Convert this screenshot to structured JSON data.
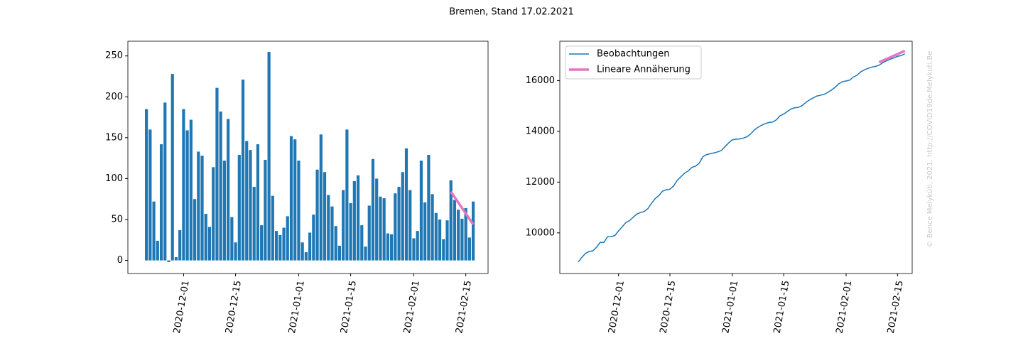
{
  "title": "Bremen, Stand 17.02.2021",
  "watermark": "© Bence Melykúti, 2021. http://COVID19de.Melykuti.Be",
  "chart_data": [
    {
      "type": "bar",
      "x": [
        "2020-11-21",
        "2020-11-22",
        "2020-11-23",
        "2020-11-24",
        "2020-11-25",
        "2020-11-26",
        "2020-11-27",
        "2020-11-28",
        "2020-11-29",
        "2020-11-30",
        "2020-12-01",
        "2020-12-02",
        "2020-12-03",
        "2020-12-04",
        "2020-12-05",
        "2020-12-06",
        "2020-12-07",
        "2020-12-08",
        "2020-12-09",
        "2020-12-10",
        "2020-12-11",
        "2020-12-12",
        "2020-12-13",
        "2020-12-14",
        "2020-12-15",
        "2020-12-16",
        "2020-12-17",
        "2020-12-18",
        "2020-12-19",
        "2020-12-20",
        "2020-12-21",
        "2020-12-22",
        "2020-12-23",
        "2020-12-24",
        "2020-12-25",
        "2020-12-26",
        "2020-12-27",
        "2020-12-28",
        "2020-12-29",
        "2020-12-30",
        "2020-12-31",
        "2021-01-01",
        "2021-01-02",
        "2021-01-03",
        "2021-01-04",
        "2021-01-05",
        "2021-01-06",
        "2021-01-07",
        "2021-01-08",
        "2021-01-09",
        "2021-01-10",
        "2021-01-11",
        "2021-01-12",
        "2021-01-13",
        "2021-01-14",
        "2021-01-15",
        "2021-01-16",
        "2021-01-17",
        "2021-01-18",
        "2021-01-19",
        "2021-01-20",
        "2021-01-21",
        "2021-01-22",
        "2021-01-23",
        "2021-01-24",
        "2021-01-25",
        "2021-01-26",
        "2021-01-27",
        "2021-01-28",
        "2021-01-29",
        "2021-01-30",
        "2021-01-31",
        "2021-02-01",
        "2021-02-02",
        "2021-02-03",
        "2021-02-04",
        "2021-02-05",
        "2021-02-06",
        "2021-02-07",
        "2021-02-08",
        "2021-02-09",
        "2021-02-10",
        "2021-02-11",
        "2021-02-12",
        "2021-02-13",
        "2021-02-14",
        "2021-02-15",
        "2021-02-16",
        "2021-02-17"
      ],
      "values": [
        185,
        160,
        72,
        24,
        142,
        193,
        -2,
        228,
        4,
        37,
        185,
        159,
        172,
        75,
        133,
        128,
        57,
        41,
        114,
        211,
        182,
        122,
        173,
        53,
        22,
        129,
        221,
        146,
        135,
        90,
        142,
        43,
        123,
        255,
        79,
        36,
        31,
        40,
        54,
        152,
        148,
        122,
        22,
        10,
        34,
        56,
        111,
        154,
        108,
        80,
        66,
        42,
        18,
        86,
        160,
        70,
        97,
        104,
        43,
        17,
        67,
        124,
        100,
        78,
        76,
        33,
        32,
        82,
        90,
        108,
        137,
        86,
        27,
        36,
        122,
        71,
        129,
        81,
        58,
        50,
        26,
        49,
        98,
        74,
        62,
        51,
        64,
        28,
        72
      ],
      "color": "#1f77b4",
      "fit": {
        "x": [
          "2021-02-11",
          "2021-02-17"
        ],
        "values": [
          84,
          44
        ],
        "color": "#e377c2"
      },
      "xlim": [
        "2020-11-16",
        "2021-02-21"
      ],
      "xticks": [
        "2020-12-01",
        "2020-12-15",
        "2021-01-01",
        "2021-01-15",
        "2021-02-01",
        "2021-02-15"
      ],
      "ylim": [
        -16,
        268
      ],
      "yticks": [
        0,
        50,
        100,
        150,
        200,
        250
      ]
    },
    {
      "type": "line",
      "x": [
        "2020-11-20",
        "2020-11-21",
        "2020-11-22",
        "2020-11-23",
        "2020-11-24",
        "2020-11-25",
        "2020-11-26",
        "2020-11-27",
        "2020-11-28",
        "2020-11-29",
        "2020-11-30",
        "2020-12-01",
        "2020-12-02",
        "2020-12-03",
        "2020-12-04",
        "2020-12-05",
        "2020-12-06",
        "2020-12-07",
        "2020-12-08",
        "2020-12-09",
        "2020-12-10",
        "2020-12-11",
        "2020-12-12",
        "2020-12-13",
        "2020-12-14",
        "2020-12-15",
        "2020-12-16",
        "2020-12-17",
        "2020-12-18",
        "2020-12-19",
        "2020-12-20",
        "2020-12-21",
        "2020-12-22",
        "2020-12-23",
        "2020-12-24",
        "2020-12-25",
        "2020-12-26",
        "2020-12-27",
        "2020-12-28",
        "2020-12-29",
        "2020-12-30",
        "2020-12-31",
        "2021-01-01",
        "2021-01-02",
        "2021-01-03",
        "2021-01-04",
        "2021-01-05",
        "2021-01-06",
        "2021-01-07",
        "2021-01-08",
        "2021-01-09",
        "2021-01-10",
        "2021-01-11",
        "2021-01-12",
        "2021-01-13",
        "2021-01-14",
        "2021-01-15",
        "2021-01-16",
        "2021-01-17",
        "2021-01-18",
        "2021-01-19",
        "2021-01-20",
        "2021-01-21",
        "2021-01-22",
        "2021-01-23",
        "2021-01-24",
        "2021-01-25",
        "2021-01-26",
        "2021-01-27",
        "2021-01-28",
        "2021-01-29",
        "2021-01-30",
        "2021-01-31",
        "2021-02-01",
        "2021-02-02",
        "2021-02-03",
        "2021-02-04",
        "2021-02-05",
        "2021-02-06",
        "2021-02-07",
        "2021-02-08",
        "2021-02-09",
        "2021-02-10",
        "2021-02-11",
        "2021-02-12",
        "2021-02-13",
        "2021-02-14",
        "2021-02-15",
        "2021-02-16",
        "2021-02-17"
      ],
      "series": [
        {
          "name": "Beobachtungen",
          "color": "#1f77b4",
          "values": [
            8850,
            9035,
            9195,
            9267,
            9291,
            9433,
            9626,
            9624,
            9852,
            9856,
            9893,
            10078,
            10237,
            10409,
            10484,
            10617,
            10745,
            10802,
            10843,
            10957,
            11168,
            11350,
            11472,
            11645,
            11698,
            11720,
            11849,
            12070,
            12216,
            12351,
            12441,
            12583,
            12626,
            12749,
            13004,
            13083,
            13119,
            13150,
            13190,
            13244,
            13396,
            13544,
            13666,
            13688,
            13698,
            13732,
            13788,
            13899,
            14053,
            14161,
            14241,
            14307,
            14349,
            14367,
            14453,
            14613,
            14683,
            14780,
            14884,
            14927,
            14944,
            15011,
            15135,
            15235,
            15313,
            15389,
            15422,
            15454,
            15536,
            15626,
            15734,
            15871,
            15957,
            15984,
            16020,
            16142,
            16213,
            16342,
            16423,
            16481,
            16531,
            16557,
            16606,
            16704,
            16778,
            16840,
            16891,
            16955,
            16983,
            17055
          ]
        },
        {
          "name": "Lineare Annäherung",
          "color": "#e377c2",
          "x": [
            "2021-02-10",
            "2021-02-17"
          ],
          "values": [
            16720,
            17170
          ]
        }
      ],
      "legend": "upper left",
      "xlim": [
        "2020-11-15",
        "2021-02-19"
      ],
      "xticks": [
        "2020-12-01",
        "2020-12-15",
        "2021-01-01",
        "2021-01-15",
        "2021-02-01",
        "2021-02-15"
      ],
      "ylim": [
        8400,
        17550
      ],
      "yticks": [
        10000,
        12000,
        14000,
        16000
      ]
    }
  ]
}
